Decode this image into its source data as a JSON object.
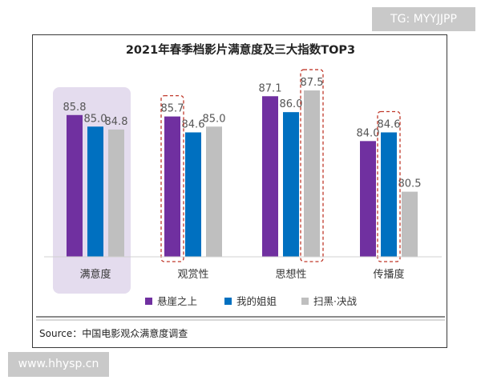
{
  "watermarks": {
    "top_right": "TG: MYYJJPP",
    "bottom_left": "www.hhysp.cn"
  },
  "source": "Source：中国电影观众满意度调查",
  "colors": {
    "series": [
      "#7030a0",
      "#0070c0",
      "#bfbfbf"
    ],
    "highlight_fill": "#e4dcee",
    "highlight_border": "#c0392b"
  },
  "chart_data": {
    "type": "bar",
    "title": "2021年春季档影片满意度及三大指数TOP3",
    "categories": [
      "满意度",
      "观赏性",
      "思想性",
      "传播度"
    ],
    "series": [
      {
        "name": "悬崖之上",
        "values": [
          85.8,
          85.7,
          87.1,
          84.0
        ]
      },
      {
        "name": "我的姐姐",
        "values": [
          85.0,
          84.6,
          86.0,
          84.6
        ]
      },
      {
        "name": "扫黑·决战",
        "values": [
          84.8,
          85.0,
          87.5,
          80.5
        ]
      }
    ],
    "value_labels": [
      [
        "85.8",
        "85.7",
        "87.1",
        "84.0"
      ],
      [
        "85.0",
        "84.6",
        "86.0",
        "84.6"
      ],
      [
        "84.8",
        "85.0",
        "87.5",
        "80.5"
      ]
    ],
    "ylim": [
      76,
      88
    ],
    "legend_position": "bottom",
    "highlighted_category": "满意度",
    "boxed_bars": [
      {
        "series": 0,
        "category": 1
      },
      {
        "series": 2,
        "category": 2
      },
      {
        "series": 1,
        "category": 3
      }
    ],
    "xlabel": "",
    "ylabel": "",
    "grid": false
  }
}
